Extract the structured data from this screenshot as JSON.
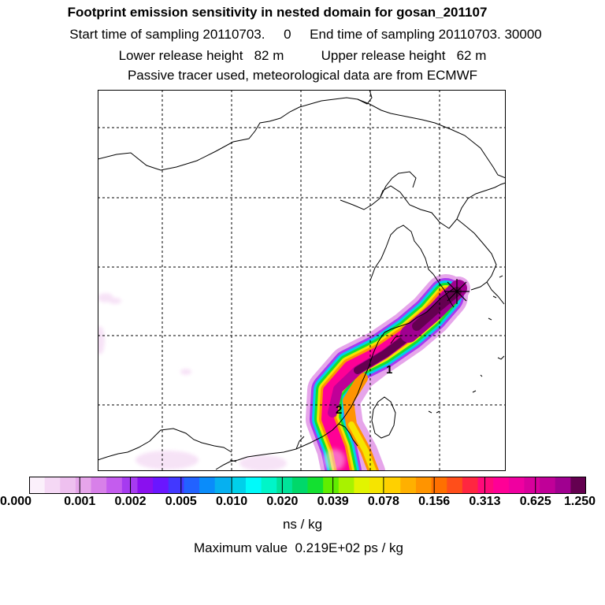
{
  "header": {
    "title": "Footprint emission sensitivity in nested domain for gosan_201107",
    "sampling_line": "Start time of sampling 20110703.     0     End time of sampling 20110703. 30000",
    "release_line": "Lower release height   82 m          Upper release height   62 m",
    "tracer_line": "Passive tracer used, meteorological data are from ECMWF"
  },
  "map": {
    "markers": [
      {
        "label": "1"
      },
      {
        "label": "2"
      }
    ],
    "receptor": "receptor-star"
  },
  "colorbar": {
    "colors": [
      "#fbf0fb",
      "#f5d8f5",
      "#eec0ef",
      "#e6a5ea",
      "#d880e9",
      "#c45cee",
      "#a63bf0",
      "#8a10ef",
      "#6a16ff",
      "#4238ff",
      "#2262ff",
      "#0a8cfa",
      "#06b0f0",
      "#00d0ea",
      "#00fafa",
      "#00f5c8",
      "#00e39a",
      "#00d86a",
      "#13e030",
      "#60ee00",
      "#a8f200",
      "#e2f400",
      "#f6e400",
      "#ffd000",
      "#ffb000",
      "#ff9400",
      "#ff7000",
      "#ff4e1a",
      "#ff2640",
      "#ff0a7a",
      "#ff0096",
      "#ef00a0",
      "#d8009c",
      "#c00098",
      "#a00090",
      "#640050"
    ],
    "tick_labels": [
      "0.000",
      "0.001",
      "0.002",
      "0.005",
      "0.010",
      "0.020",
      "0.039",
      "0.078",
      "0.156",
      "0.313",
      "0.625",
      "1.250"
    ]
  },
  "units": "ns / kg",
  "max_value_text": "Maximum value  0.219E+02 ps / kg"
}
